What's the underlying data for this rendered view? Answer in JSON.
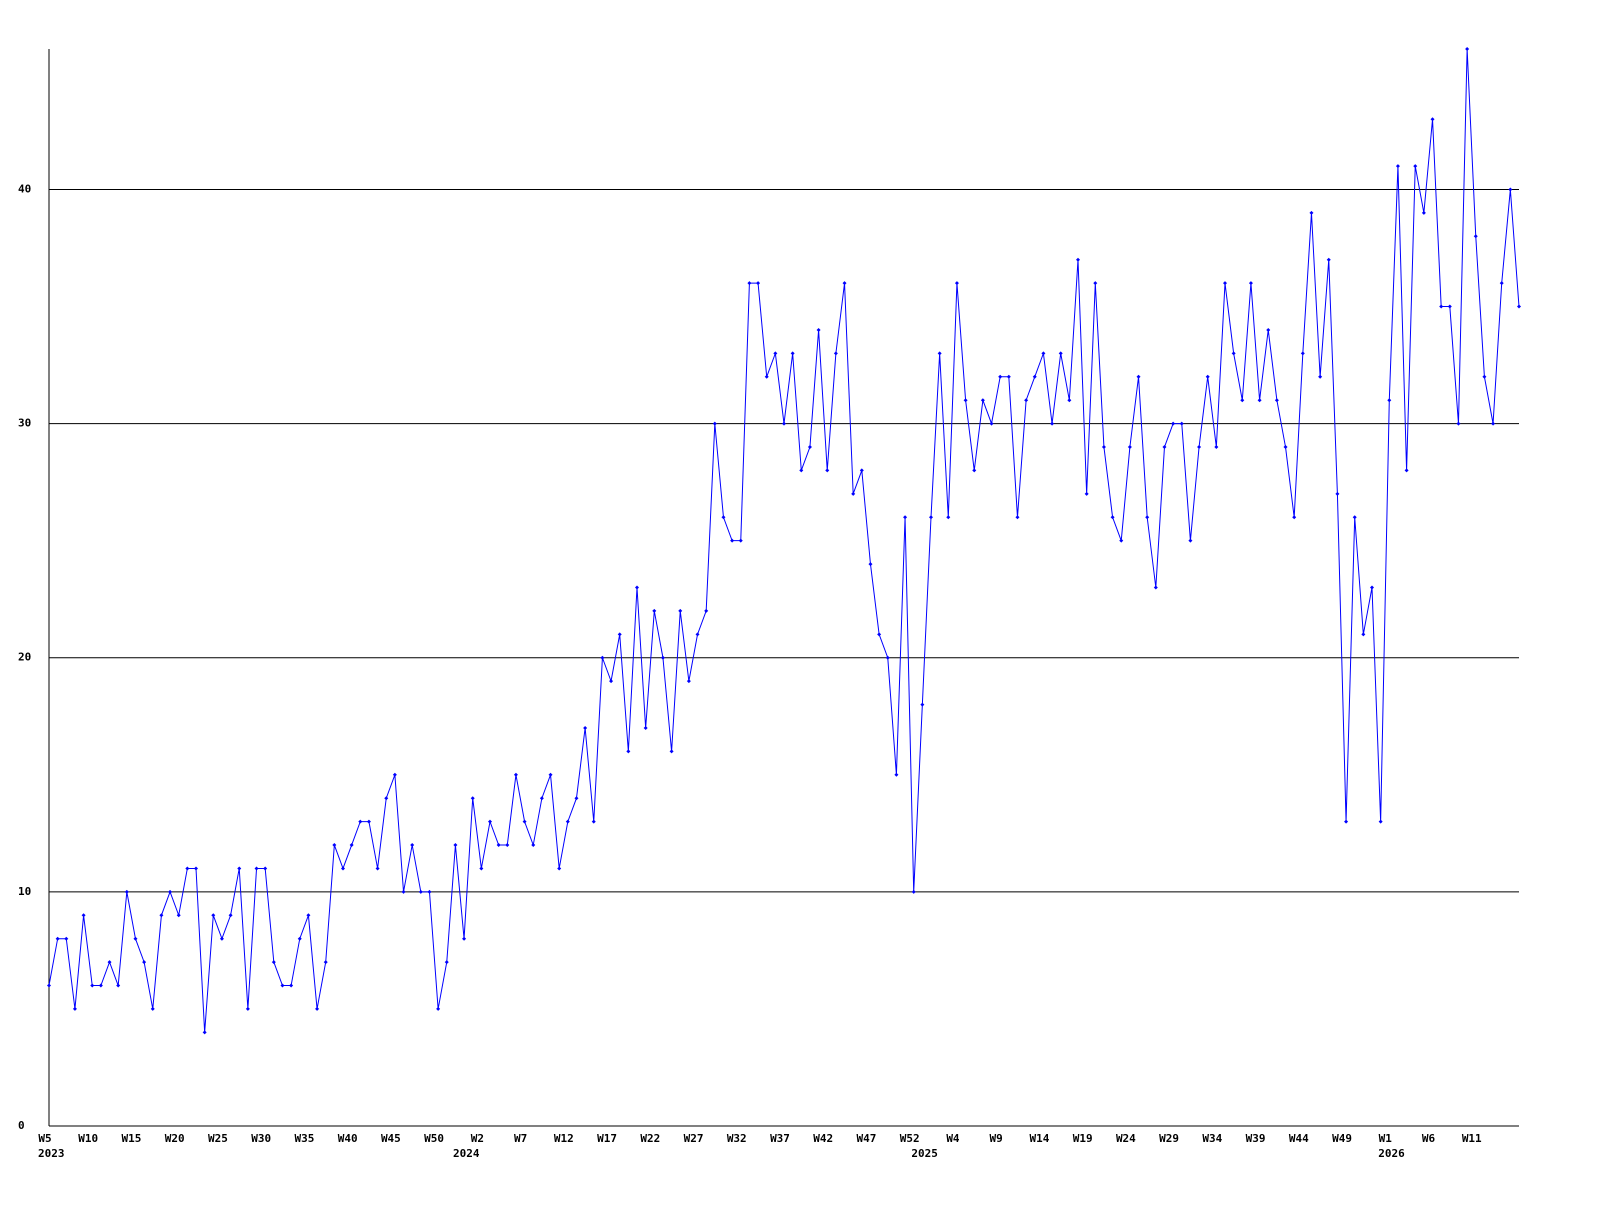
{
  "chart_data": {
    "type": "line",
    "categories": [
      "W5",
      null,
      null,
      null,
      null,
      "W10",
      null,
      null,
      null,
      null,
      "W15",
      null,
      null,
      null,
      null,
      "W20",
      null,
      null,
      null,
      null,
      "W25",
      null,
      null,
      null,
      null,
      "W30",
      null,
      null,
      null,
      null,
      "W35",
      null,
      null,
      null,
      null,
      "W40",
      null,
      null,
      null,
      null,
      "W45",
      null,
      null,
      null,
      null,
      "W50",
      null,
      null,
      null,
      null,
      "W2",
      null,
      null,
      null,
      null,
      "W7",
      null,
      null,
      null,
      null,
      "W12",
      null,
      null,
      null,
      null,
      "W17",
      null,
      null,
      null,
      null,
      "W22",
      null,
      null,
      null,
      null,
      "W27",
      null,
      null,
      null,
      null,
      "W32",
      null,
      null,
      null,
      null,
      "W37",
      null,
      null,
      null,
      null,
      "W42",
      null,
      null,
      null,
      null,
      "W47",
      null,
      null,
      null,
      null,
      "W52",
      null,
      null,
      null,
      null,
      "W4",
      null,
      null,
      null,
      null,
      "W9",
      null,
      null,
      null,
      null,
      "W14",
      null,
      null,
      null,
      null,
      "W19",
      null,
      null,
      null,
      null,
      "W24",
      null,
      null,
      null,
      null,
      "W29",
      null,
      null,
      null,
      null,
      "W34",
      null,
      null,
      null,
      null,
      "W39",
      null,
      null,
      null,
      null,
      "W44",
      null,
      null,
      null,
      null,
      "W49",
      null,
      null,
      null,
      null,
      "W1",
      null,
      null,
      null,
      null,
      "W6",
      null,
      null,
      null,
      null,
      "W11",
      null,
      null,
      null,
      null,
      null
    ],
    "years": [
      "2023",
      null,
      null,
      null,
      null,
      null,
      null,
      null,
      null,
      null,
      null,
      null,
      null,
      null,
      null,
      null,
      null,
      null,
      null,
      null,
      null,
      null,
      null,
      null,
      null,
      null,
      null,
      null,
      null,
      null,
      null,
      null,
      null,
      null,
      null,
      null,
      null,
      null,
      null,
      null,
      null,
      null,
      null,
      null,
      null,
      null,
      null,
      null,
      "2024",
      null,
      null,
      null,
      null,
      null,
      null,
      null,
      null,
      null,
      null,
      null,
      null,
      null,
      null,
      null,
      null,
      null,
      null,
      null,
      null,
      null,
      null,
      null,
      null,
      null,
      null,
      null,
      null,
      null,
      null,
      null,
      null,
      null,
      null,
      null,
      null,
      null,
      null,
      null,
      null,
      null,
      null,
      null,
      null,
      null,
      null,
      null,
      null,
      null,
      null,
      null,
      null,
      "2025",
      null,
      null,
      null,
      null,
      null,
      null,
      null,
      null,
      null,
      null,
      null,
      null,
      null,
      null,
      null,
      null,
      null,
      null,
      null,
      null,
      null,
      null,
      null,
      null,
      null,
      null,
      null,
      null,
      null,
      null,
      null,
      null,
      null,
      null,
      null,
      null,
      null,
      null,
      null,
      null,
      null,
      null,
      null,
      null,
      null,
      null,
      null,
      null,
      null,
      null,
      null,
      null,
      null,
      "2026",
      null,
      null,
      null,
      null,
      null,
      null,
      null,
      null,
      null,
      null,
      null,
      null,
      null,
      null,
      null,
      null
    ],
    "series": [
      {
        "color": "#0000ff",
        "values": [
          6,
          8,
          8,
          5,
          9,
          6,
          6,
          7,
          6,
          10,
          8,
          7,
          5,
          9,
          10,
          9,
          11,
          11,
          4,
          9,
          8,
          9,
          11,
          5,
          11,
          11,
          7,
          6,
          6,
          8,
          9,
          5,
          7,
          12,
          11,
          12,
          13,
          13,
          11,
          14,
          15,
          10,
          12,
          10,
          10,
          5,
          7,
          12,
          8,
          14,
          11,
          13,
          12,
          12,
          15,
          13,
          12,
          14,
          15,
          11,
          13,
          14,
          17,
          13,
          20,
          19,
          21,
          16,
          23,
          17,
          22,
          20,
          16,
          22,
          19,
          21,
          22,
          30,
          26,
          25,
          25,
          36,
          36,
          32,
          33,
          30,
          33,
          28,
          29,
          34,
          28,
          33,
          36,
          27,
          28,
          24,
          21,
          20,
          15,
          26,
          10,
          18,
          26,
          33,
          26,
          36,
          31,
          28,
          31,
          30,
          32,
          32,
          26,
          31,
          32,
          33,
          30,
          33,
          31,
          37,
          27,
          36,
          29,
          26,
          25,
          29,
          32,
          26,
          23,
          29,
          30,
          30,
          25,
          29,
          32,
          29,
          36,
          33,
          31,
          36,
          31,
          34,
          31,
          29,
          26,
          33,
          39,
          32,
          37,
          27,
          13,
          26,
          21,
          23,
          13,
          31,
          41,
          28,
          41,
          39,
          43,
          35,
          35,
          30,
          46,
          38,
          32,
          30,
          36,
          40,
          35
        ]
      }
    ],
    "ylim": [
      0,
      46
    ],
    "yticks": [
      0,
      10,
      20,
      30,
      40
    ],
    "grid": true
  }
}
